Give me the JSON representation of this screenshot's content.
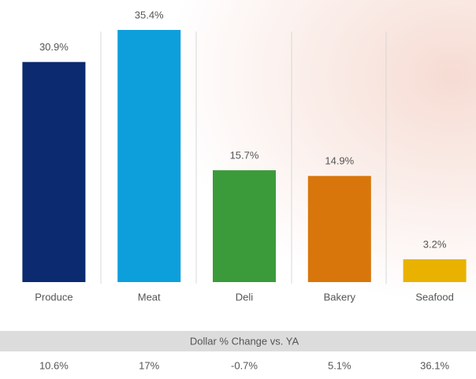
{
  "chart_data": {
    "type": "bar",
    "categories": [
      "Produce",
      "Meat",
      "Deli",
      "Bakery",
      "Seafood"
    ],
    "values": [
      30.9,
      35.4,
      15.7,
      14.9,
      3.2
    ],
    "value_labels": [
      "30.9%",
      "35.4%",
      "15.7%",
      "14.9%",
      "3.2%"
    ],
    "colors": [
      "#0b2a6f",
      "#0d9fdc",
      "#3b9b3a",
      "#d8760b",
      "#e9b200"
    ]
  },
  "table": {
    "title": "Dollar % Change vs. YA",
    "cells": [
      "10.6%",
      "17%",
      "-0.7%",
      "5.1%",
      "36.1%"
    ]
  }
}
